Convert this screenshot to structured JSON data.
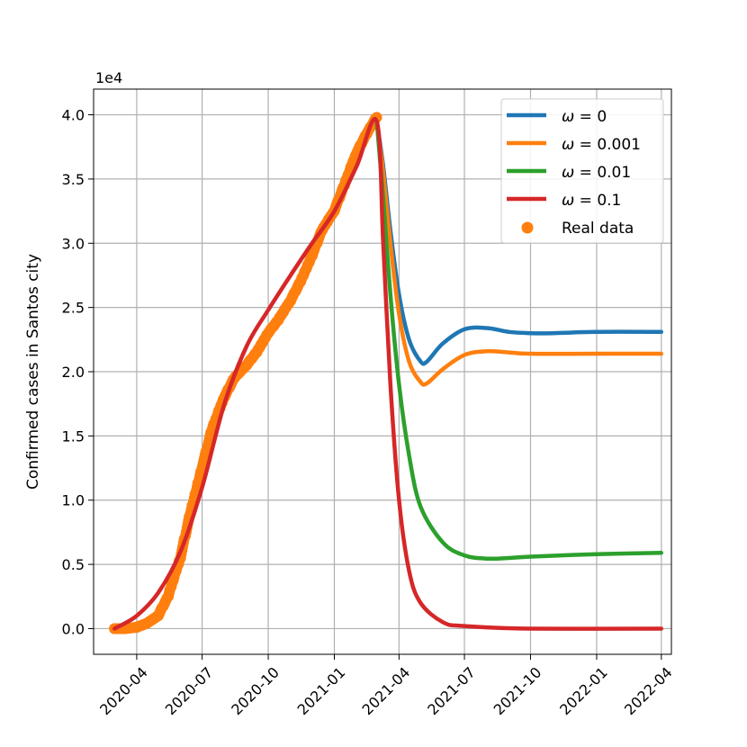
{
  "chart_data": {
    "type": "line",
    "title": "",
    "xlabel": "",
    "ylabel": "Confirmed cases in Santos city",
    "y_offset_label": "1e4",
    "x_ticks": [
      "2020-04",
      "2020-07",
      "2020-10",
      "2021-01",
      "2021-04",
      "2021-07",
      "2021-10",
      "2022-01",
      "2022-04"
    ],
    "y_ticks": [
      "0.0",
      "0.5",
      "1.0",
      "1.5",
      "2.0",
      "2.5",
      "3.0",
      "3.5",
      "4.0"
    ],
    "xlim": [
      "2020-02-01",
      "2022-04-15"
    ],
    "ylim": [
      -0.2,
      4.2
    ],
    "y_scale_multiplier": 10000,
    "grid": true,
    "legend_position": "top-right",
    "series": [
      {
        "name": "ω = 0",
        "label_symbol": "ω",
        "label_value": "0",
        "color": "#1f77b4",
        "points": [
          [
            "2021-03-01",
            3.95
          ],
          [
            "2021-03-10",
            3.6
          ],
          [
            "2021-03-20",
            3.1
          ],
          [
            "2021-04-01",
            2.6
          ],
          [
            "2021-04-15",
            2.25
          ],
          [
            "2021-05-01",
            2.08
          ],
          [
            "2021-05-10",
            2.08
          ],
          [
            "2021-06-01",
            2.22
          ],
          [
            "2021-07-01",
            2.33
          ],
          [
            "2021-08-01",
            2.34
          ],
          [
            "2021-09-01",
            2.31
          ],
          [
            "2021-10-01",
            2.3
          ],
          [
            "2021-11-01",
            2.3
          ],
          [
            "2022-01-01",
            2.31
          ],
          [
            "2022-04-01",
            2.31
          ]
        ]
      },
      {
        "name": "ω = 0.001",
        "label_symbol": "ω",
        "label_value": "0.001",
        "color": "#ff7f0e",
        "points": [
          [
            "2021-03-01",
            3.95
          ],
          [
            "2021-03-10",
            3.55
          ],
          [
            "2021-03-20",
            3.0
          ],
          [
            "2021-04-01",
            2.45
          ],
          [
            "2021-04-15",
            2.08
          ],
          [
            "2021-05-01",
            1.92
          ],
          [
            "2021-05-10",
            1.91
          ],
          [
            "2021-06-01",
            2.02
          ],
          [
            "2021-07-01",
            2.13
          ],
          [
            "2021-08-01",
            2.16
          ],
          [
            "2021-09-01",
            2.15
          ],
          [
            "2021-10-01",
            2.14
          ],
          [
            "2022-01-01",
            2.14
          ],
          [
            "2022-04-01",
            2.14
          ]
        ]
      },
      {
        "name": "ω = 0.01",
        "label_symbol": "ω",
        "label_value": "0.01",
        "color": "#2ca02c",
        "points": [
          [
            "2021-03-01",
            3.95
          ],
          [
            "2021-03-10",
            3.35
          ],
          [
            "2021-03-20",
            2.6
          ],
          [
            "2021-04-01",
            1.9
          ],
          [
            "2021-04-15",
            1.35
          ],
          [
            "2021-05-01",
            0.95
          ],
          [
            "2021-06-01",
            0.67
          ],
          [
            "2021-07-01",
            0.57
          ],
          [
            "2021-08-01",
            0.545
          ],
          [
            "2021-09-01",
            0.55
          ],
          [
            "2021-10-01",
            0.56
          ],
          [
            "2022-01-01",
            0.58
          ],
          [
            "2022-04-01",
            0.59
          ]
        ]
      },
      {
        "name": "ω = 0.1",
        "label_symbol": "ω",
        "label_value": "0.1",
        "color": "#d62728",
        "points": [
          [
            "2020-03-01",
            0.0
          ],
          [
            "2020-04-01",
            0.1
          ],
          [
            "2020-05-01",
            0.28
          ],
          [
            "2020-06-01",
            0.6
          ],
          [
            "2020-07-01",
            1.1
          ],
          [
            "2020-08-01",
            1.75
          ],
          [
            "2020-09-01",
            2.2
          ],
          [
            "2020-10-01",
            2.48
          ],
          [
            "2020-11-01",
            2.75
          ],
          [
            "2020-12-01",
            3.0
          ],
          [
            "2021-01-01",
            3.25
          ],
          [
            "2021-02-01",
            3.6
          ],
          [
            "2021-03-01",
            3.95
          ],
          [
            "2021-03-10",
            3.0
          ],
          [
            "2021-03-20",
            1.9
          ],
          [
            "2021-04-01",
            1.0
          ],
          [
            "2021-04-15",
            0.45
          ],
          [
            "2021-05-01",
            0.2
          ],
          [
            "2021-06-01",
            0.05
          ],
          [
            "2021-07-01",
            0.02
          ],
          [
            "2021-10-01",
            0.0
          ],
          [
            "2022-04-01",
            0.0
          ]
        ]
      },
      {
        "name": "Real data",
        "type": "scatter",
        "color": "#ff7f0e",
        "points": [
          [
            "2020-03-01",
            0.0
          ],
          [
            "2020-03-15",
            0.0
          ],
          [
            "2020-04-01",
            0.01
          ],
          [
            "2020-04-15",
            0.04
          ],
          [
            "2020-05-01",
            0.1
          ],
          [
            "2020-05-15",
            0.25
          ],
          [
            "2020-06-01",
            0.55
          ],
          [
            "2020-06-15",
            0.9
          ],
          [
            "2020-07-01",
            1.25
          ],
          [
            "2020-07-15",
            1.55
          ],
          [
            "2020-08-01",
            1.8
          ],
          [
            "2020-08-15",
            1.95
          ],
          [
            "2020-09-01",
            2.05
          ],
          [
            "2020-09-15",
            2.15
          ],
          [
            "2020-10-01",
            2.3
          ],
          [
            "2020-10-15",
            2.4
          ],
          [
            "2020-11-01",
            2.55
          ],
          [
            "2020-11-15",
            2.7
          ],
          [
            "2020-12-01",
            2.9
          ],
          [
            "2020-12-15",
            3.1
          ],
          [
            "2021-01-01",
            3.25
          ],
          [
            "2021-01-15",
            3.45
          ],
          [
            "2021-02-01",
            3.7
          ],
          [
            "2021-02-15",
            3.85
          ],
          [
            "2021-03-01",
            3.98
          ]
        ]
      }
    ]
  }
}
